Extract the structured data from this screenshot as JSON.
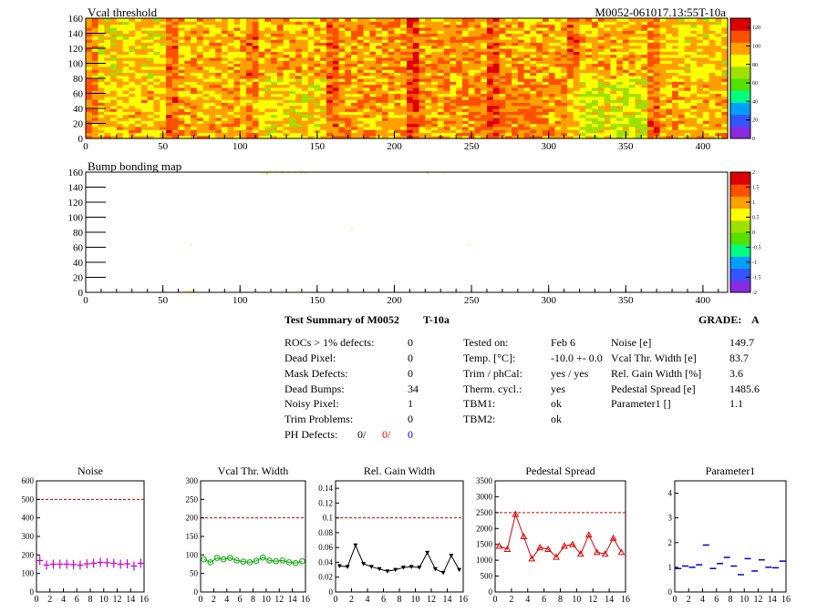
{
  "colors": {
    "map_colormap": [
      "#8a2be2",
      "#3355ff",
      "#00a0ff",
      "#00ff80",
      "#55e000",
      "#a0e000",
      "#ffff00",
      "#ffa000",
      "#ff5000",
      "#dd0000"
    ],
    "noise_marker": "#cc00cc",
    "vcal_marker": "#00aa00",
    "gain_marker": "#000000",
    "pedestal_marker": "#dd0000",
    "parameter1_marker": "#0000cc",
    "limit_line": "#cc0000",
    "ph_defects_red": "#ff0000",
    "ph_defects_blue": "#0000ff"
  },
  "chart_data": [
    {
      "type": "heatmap",
      "title": "Vcal threshold",
      "id_label": "M0052-061017.13:55T-10a",
      "xlim": [
        0,
        416
      ],
      "ylim": [
        0,
        160
      ],
      "x_ticks": [
        "0",
        "50",
        "100",
        "150",
        "200",
        "250",
        "300",
        "350",
        "400"
      ],
      "y_ticks": [
        "0",
        "20",
        "40",
        "60",
        "80",
        "100",
        "120",
        "140",
        "160"
      ],
      "z_range": [
        0,
        130
      ],
      "z_ticks": [
        "0",
        "20",
        "40",
        "60",
        "80",
        "100",
        "120"
      ],
      "roc_grid": {
        "columns": 8,
        "rows": 2,
        "roc_width": 52,
        "roc_height": 80
      },
      "roc_mean_values": [
        [
          88,
          93,
          95,
          98,
          100,
          96,
          94,
          90
        ],
        [
          92,
          95,
          88,
          97,
          100,
          102,
          80,
          94
        ]
      ]
    },
    {
      "type": "heatmap",
      "title": "Bump bonding map",
      "xlim": [
        0,
        416
      ],
      "ylim": [
        0,
        160
      ],
      "x_ticks": [
        "0",
        "50",
        "100",
        "150",
        "200",
        "250",
        "300",
        "350",
        "400"
      ],
      "y_ticks": [
        "0",
        "20",
        "40",
        "60",
        "80",
        "100",
        "120",
        "140",
        "160"
      ],
      "z_range": [
        -2,
        2
      ],
      "z_ticks": [
        "-2",
        "-1.5",
        "-1",
        "-0.5",
        "0",
        "0.5",
        "1",
        "1.5",
        "2"
      ],
      "dead_bumps": [
        {
          "x": 64,
          "y": 1,
          "value": 0.6
        },
        {
          "x": 66,
          "y": 1,
          "value": 0.6
        },
        {
          "x": 68,
          "y": 1,
          "value": 0.6
        },
        {
          "x": 70,
          "y": 1,
          "value": 0.6
        },
        {
          "x": 137,
          "y": 1,
          "value": 0.6
        },
        {
          "x": 68,
          "y": 63,
          "value": 0.6
        },
        {
          "x": 172,
          "y": 84,
          "value": 0.6
        },
        {
          "x": 248,
          "y": 63,
          "value": 0.6
        },
        {
          "x": 113,
          "y": 159,
          "value": 0.6
        },
        {
          "x": 115,
          "y": 159,
          "value": 0.6
        },
        {
          "x": 117,
          "y": 158,
          "value": 0.3
        },
        {
          "x": 119,
          "y": 159,
          "value": 0.6
        },
        {
          "x": 123,
          "y": 159,
          "value": 0.6
        },
        {
          "x": 127,
          "y": 159,
          "value": 0.6
        },
        {
          "x": 131,
          "y": 159,
          "value": 0.6
        },
        {
          "x": 135,
          "y": 159,
          "value": 0.6
        },
        {
          "x": 139,
          "y": 159,
          "value": 0.6
        },
        {
          "x": 142,
          "y": 159,
          "value": 0.6
        },
        {
          "x": 221,
          "y": 159,
          "value": 0.3
        },
        {
          "x": 232,
          "y": 159,
          "value": 0.6
        }
      ]
    },
    {
      "type": "scatter",
      "title": "Noise",
      "x": [
        0,
        1,
        2,
        3,
        4,
        5,
        6,
        7,
        8,
        9,
        10,
        11,
        12,
        13,
        14,
        15
      ],
      "values": [
        170,
        145,
        150,
        150,
        150,
        148,
        145,
        152,
        155,
        160,
        158,
        155,
        150,
        152,
        140,
        155
      ],
      "limit": 500,
      "xlim": [
        0,
        16
      ],
      "ylim": [
        0,
        600
      ],
      "x_ticks": [
        "0",
        "2",
        "4",
        "6",
        "8",
        "10",
        "12",
        "14",
        "16"
      ],
      "y_ticks": [
        "0",
        "100",
        "200",
        "300",
        "400",
        "500",
        "600"
      ],
      "marker": "cross"
    },
    {
      "type": "line",
      "title": "Vcal Thr. Width",
      "x": [
        0,
        1,
        2,
        3,
        4,
        5,
        6,
        7,
        8,
        9,
        10,
        11,
        12,
        13,
        14,
        15
      ],
      "values": [
        88,
        80,
        92,
        88,
        92,
        85,
        82,
        80,
        84,
        93,
        85,
        83,
        85,
        80,
        78,
        83
      ],
      "limit": 200,
      "xlim": [
        0,
        16
      ],
      "ylim": [
        0,
        300
      ],
      "x_ticks": [
        "0",
        "2",
        "4",
        "6",
        "8",
        "10",
        "12",
        "14",
        "16"
      ],
      "y_ticks": [
        "0",
        "50",
        "100",
        "150",
        "200",
        "250",
        "300"
      ],
      "marker": "circle"
    },
    {
      "type": "line",
      "title": "Rel. Gain Width",
      "x": [
        0,
        1,
        2,
        3,
        4,
        5,
        6,
        7,
        8,
        9,
        10,
        11,
        12,
        13,
        14,
        15
      ],
      "values": [
        0.035,
        0.034,
        0.063,
        0.038,
        0.034,
        0.031,
        0.028,
        0.03,
        0.033,
        0.034,
        0.033,
        0.053,
        0.031,
        0.026,
        0.049,
        0.03
      ],
      "limit": 0.1,
      "xlim": [
        0,
        16
      ],
      "ylim": [
        0,
        0.15
      ],
      "x_ticks": [
        "0",
        "2",
        "4",
        "6",
        "8",
        "10",
        "12",
        "14",
        "16"
      ],
      "y_ticks": [
        "0",
        "0.02",
        "0.04",
        "0.06",
        "0.08",
        "0.1",
        "0.12",
        "0.14"
      ],
      "marker": "triangle-down"
    },
    {
      "type": "line",
      "title": "Pedestal Spread",
      "x": [
        0,
        1,
        2,
        3,
        4,
        5,
        6,
        7,
        8,
        9,
        10,
        11,
        12,
        13,
        14,
        15
      ],
      "values": [
        1450,
        1350,
        2450,
        1750,
        1050,
        1400,
        1350,
        1100,
        1450,
        1500,
        1200,
        1800,
        1250,
        1200,
        1700,
        1250
      ],
      "limit": 2500,
      "xlim": [
        0,
        16
      ],
      "ylim": [
        0,
        3500
      ],
      "x_ticks": [
        "0",
        "2",
        "4",
        "6",
        "8",
        "10",
        "12",
        "14",
        "16"
      ],
      "y_ticks": [
        "0",
        "500",
        "1000",
        "1500",
        "2000",
        "2500",
        "3000",
        "3500"
      ],
      "marker": "triangle-up"
    },
    {
      "type": "scatter",
      "title": "Parameter1",
      "x": [
        0,
        1,
        2,
        3,
        4,
        5,
        6,
        7,
        8,
        9,
        10,
        11,
        12,
        13,
        14,
        15
      ],
      "values": [
        0.95,
        1.05,
        1.0,
        1.1,
        1.9,
        0.95,
        1.15,
        1.4,
        1.05,
        0.7,
        1.35,
        0.85,
        1.3,
        1.0,
        0.98,
        1.25
      ],
      "xlim": [
        0,
        16
      ],
      "ylim": [
        0,
        4.5
      ],
      "x_ticks": [
        "0",
        "2",
        "4",
        "6",
        "8",
        "10",
        "12",
        "14",
        "16"
      ],
      "y_ticks": [
        "0",
        "1",
        "2",
        "3",
        "4"
      ],
      "marker": "hbar"
    }
  ],
  "summary": {
    "title": "Test Summary of M0052",
    "suffix": "T-10a",
    "grade_label": "GRADE:",
    "grade": "A",
    "left_rows": [
      {
        "label": "ROCs > 1% defects:",
        "value": "0"
      },
      {
        "label": "Dead Pixel:",
        "value": "0"
      },
      {
        "label": "Mask Defects:",
        "value": "0"
      },
      {
        "label": "Dead Bumps:",
        "value": "34"
      },
      {
        "label": "Noisy Pixel:",
        "value": "1"
      },
      {
        "label": "Trim Problems:",
        "value": "0"
      }
    ],
    "ph_defects": {
      "label": "PH Defects:",
      "v1": "0/",
      "v2": "0/",
      "v3": "0"
    },
    "middle_rows": [
      {
        "label": "Tested on:",
        "value": "Feb 6"
      },
      {
        "label": "Temp. [°C]:",
        "value": "-10.0 +- 0.0"
      },
      {
        "label": "Trim / phCal:",
        "value": "yes / yes"
      },
      {
        "label": "Therm. cycl.:",
        "value": "yes"
      },
      {
        "label": "TBM1:",
        "value": "ok"
      },
      {
        "label": "TBM2:",
        "value": "ok"
      }
    ],
    "right_rows": [
      {
        "label": "Noise [e]",
        "value": "149.7"
      },
      {
        "label": "Vcal Thr. Width [e]",
        "value": "83.7"
      },
      {
        "label": "Rel. Gain Width [%]",
        "value": "3.6"
      },
      {
        "label": "Pedestal Spread [e]",
        "value": "1485.6"
      },
      {
        "label": "Parameter1 []",
        "value": "1.1"
      }
    ]
  }
}
